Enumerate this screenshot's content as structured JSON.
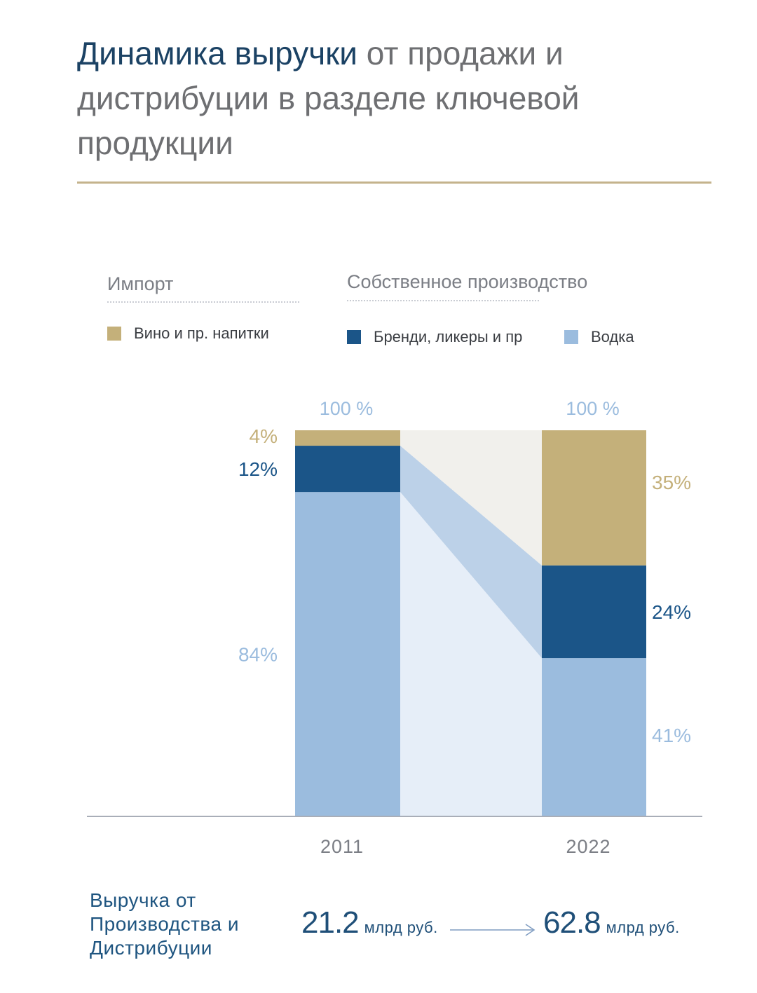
{
  "header": {
    "title_highlight": "Динамика выручки",
    "title_rest": " от продажи и дистрибуции в разделе ключевой продукции"
  },
  "legend": {
    "groups": [
      {
        "title": "Импорт"
      },
      {
        "title": "Собственное производство"
      }
    ],
    "items": [
      {
        "label": "Вино и пр. напитки",
        "color": "#c4b07a"
      },
      {
        "label": "Бренди, ликеры и пр",
        "color": "#1b5588"
      },
      {
        "label": "Водка",
        "color": "#9bbcde"
      }
    ]
  },
  "chart_data": {
    "type": "bar",
    "stacked": true,
    "categories": [
      "2011",
      "2022"
    ],
    "series": [
      {
        "name": "Водка",
        "values": [
          84,
          41
        ],
        "labels": [
          "84%",
          "41%"
        ],
        "color": "#9bbcde"
      },
      {
        "name": "Бренди, ликеры и пр",
        "values": [
          12,
          24
        ],
        "labels": [
          "12%",
          "24%"
        ],
        "color": "#1b5588"
      },
      {
        "name": "Вино и пр. напитки",
        "values": [
          4,
          35
        ],
        "labels": [
          "4%",
          "35%"
        ],
        "color": "#c4b07a"
      }
    ],
    "totals": [
      "100 %",
      "100 %"
    ],
    "ylim": [
      0,
      100
    ],
    "grid": false
  },
  "revenue": {
    "label": "Выручка от Производства и Дистрибуции",
    "from_value": "21.2",
    "to_value": "62.8",
    "unit": "млрд руб."
  }
}
